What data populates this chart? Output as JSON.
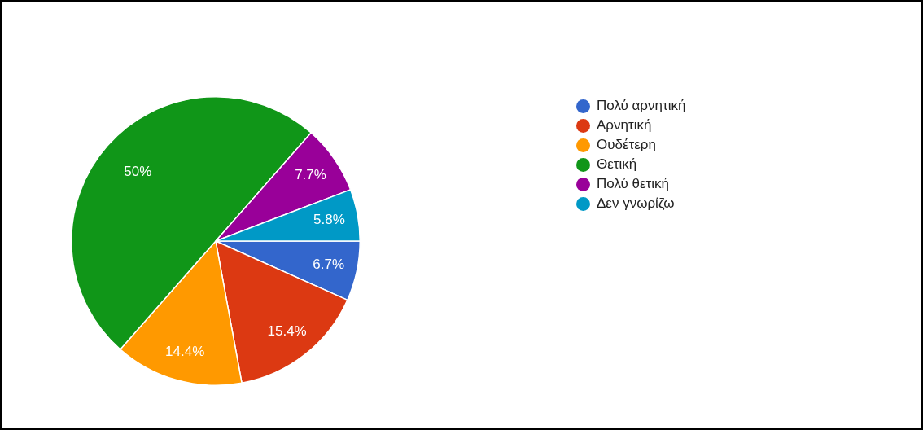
{
  "chart_data": {
    "type": "pie",
    "categories": [
      "Πολύ αρνητική",
      "Αρνητική",
      "Ουδέτερη",
      "Θετική",
      "Πολύ θετική",
      "Δεν γνωρίζω"
    ],
    "values": [
      6.7,
      15.4,
      14.4,
      50,
      7.7,
      5.8
    ],
    "colors": [
      "#3366cc",
      "#dc3912",
      "#ff9900",
      "#109618",
      "#990099",
      "#0099c6"
    ],
    "value_labels": [
      "6.7%",
      "15.4%",
      "14.4%",
      "50%",
      "7.7%",
      "5.8%"
    ],
    "legend": "right"
  }
}
